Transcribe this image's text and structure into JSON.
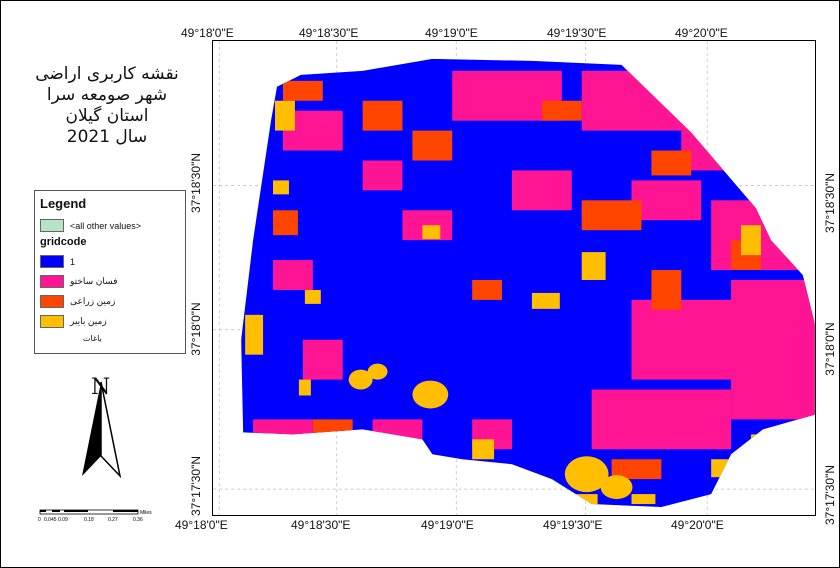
{
  "title": {
    "line1": "نقشه کاربری اراضی",
    "line2": "شهر صومعه سرا",
    "line3": "استان گیلان",
    "line4": "سال 2021"
  },
  "legend": {
    "title": "Legend",
    "other_values": "<all other values>",
    "field": "gridcode",
    "items": [
      {
        "label": "1",
        "color": "#0000ff"
      },
      {
        "label": "فسان ساختو",
        "color": "#ff1493"
      },
      {
        "label": "زمین زراعی",
        "color": "#ff4500"
      },
      {
        "label": "زمین بایبر",
        "color": "#ffbf00"
      }
    ],
    "extra_label": "باغات"
  },
  "north_arrow": {
    "label": "N"
  },
  "scale_bar": {
    "labels": [
      "0",
      "0.045",
      "0.09",
      "0.18",
      "0.27",
      "0.36"
    ],
    "unit": "Miles"
  },
  "axes": {
    "top_ticks": [
      "49°18'0\"E",
      "49°18'30\"E",
      "49°19'0\"E",
      "49°19'30\"E",
      "49°20'0\"E"
    ],
    "bottom_ticks": [
      "49°18'0\"E",
      "49°18'30\"E",
      "49°19'0\"E",
      "49°19'30\"E",
      "49°20'0\"E"
    ],
    "left_ticks": [
      "37°18'30\"N",
      "37°18'0\"N",
      "37°17'30\"N"
    ],
    "right_ticks": [
      "37°18'30\"N",
      "37°18'0\"N",
      "37°17'30\"N"
    ]
  },
  "colors": {
    "residential": "#0000ff",
    "built": "#ff1493",
    "agricultural": "#ff4500",
    "barren": "#ffbf00",
    "other": "#b7e4c7"
  }
}
